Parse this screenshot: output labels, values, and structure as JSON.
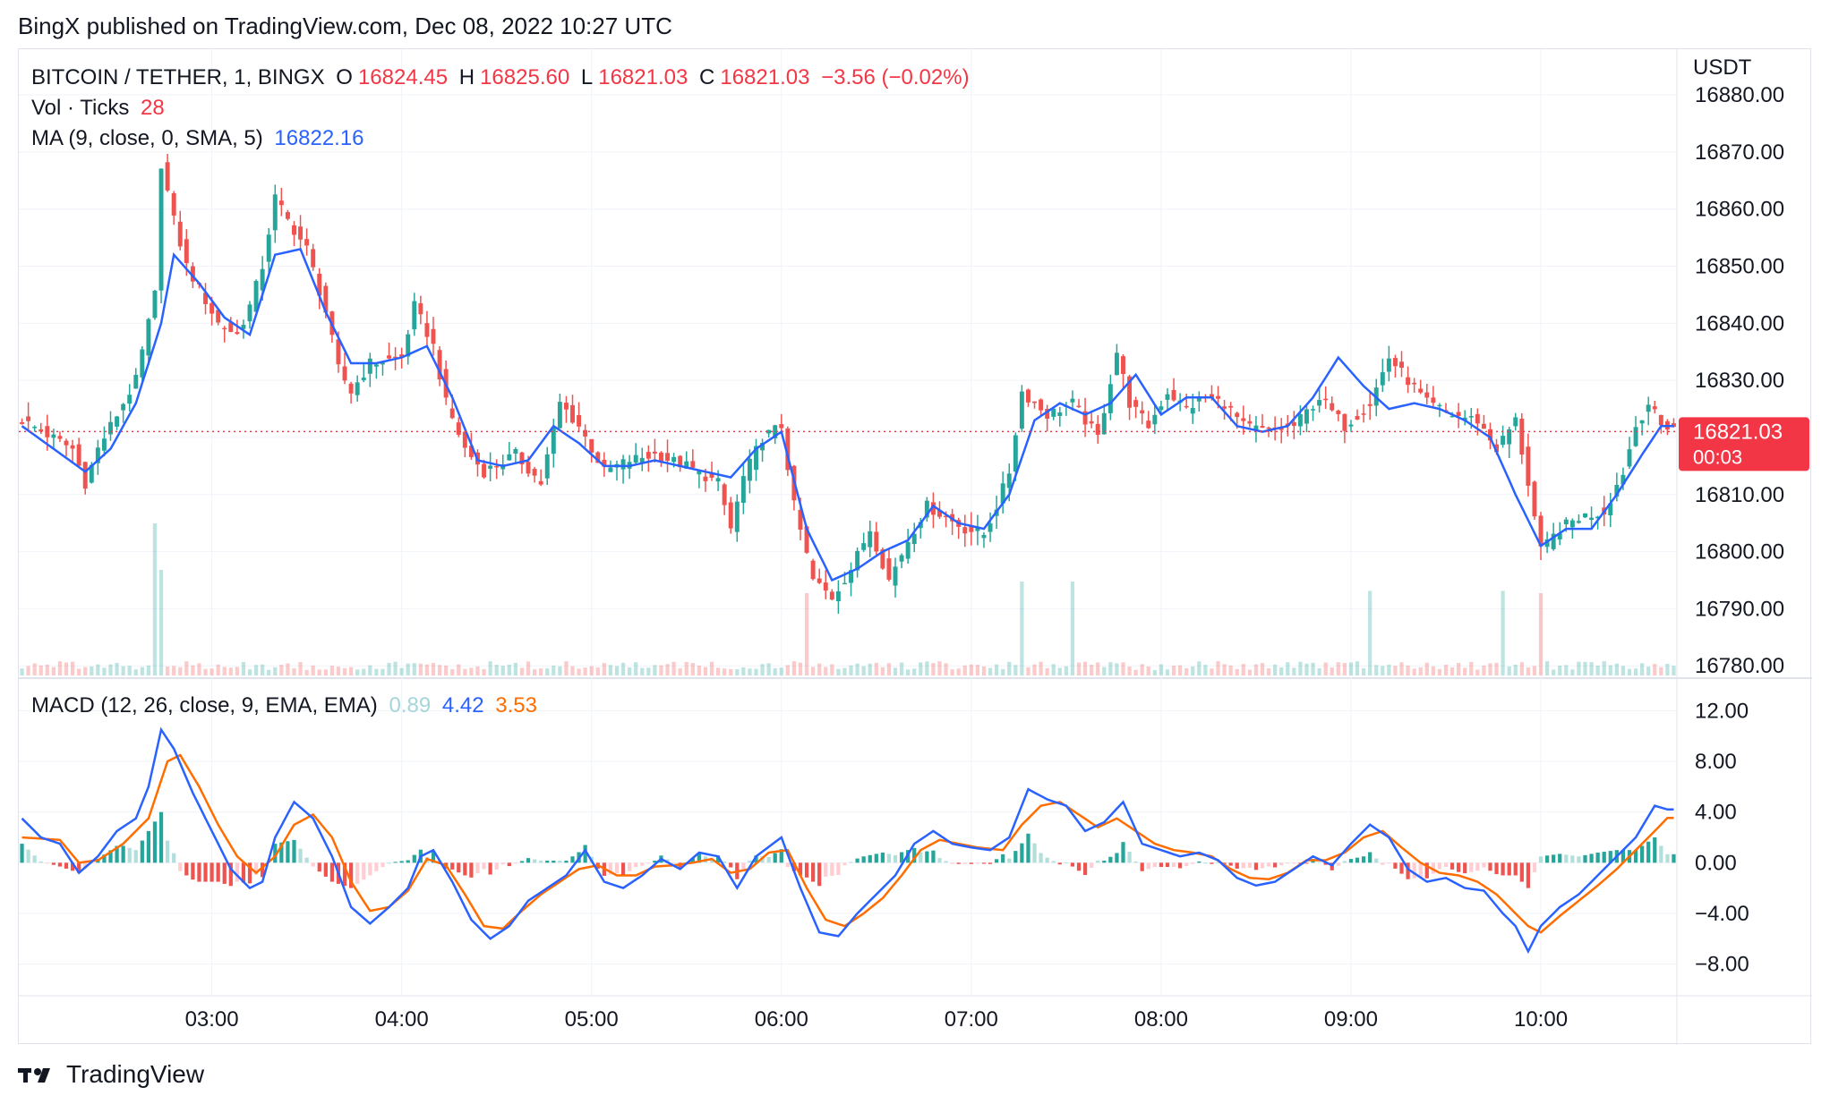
{
  "header": {
    "published": "BingX published on TradingView.com, Dec 08, 2022 10:27 UTC"
  },
  "legend": {
    "symbol": "BITCOIN / TETHER, 1, BINGX",
    "open_label": "O",
    "open": "16824.45",
    "high_label": "H",
    "high": "16825.60",
    "low_label": "L",
    "low": "16821.03",
    "close_label": "C",
    "close": "16821.03",
    "change": "−3.56 (−0.02%)",
    "vol_label": "Vol · Ticks",
    "vol_value": "28",
    "ma_label": "MA (9, close, 0, SMA, 5)",
    "ma_value": "16822.16",
    "macd_label": "MACD (12, 26, close, 9, EMA, EMA)",
    "macd_hist": "0.89",
    "macd_line": "4.42",
    "macd_signal": "3.53"
  },
  "price_axis": {
    "currency": "USDT",
    "last_price": "16821.03",
    "countdown": "00:03"
  },
  "footer": {
    "brand": "TradingView"
  },
  "colors": {
    "up": "#26a69a",
    "down": "#ef5350",
    "ma": "#2962ff",
    "macd": "#2962ff",
    "signal": "#ff6d00",
    "price_tag": "#f23645",
    "grid": "#f0f3fa"
  },
  "chart_data": [
    {
      "type": "candlestick",
      "panel": "price",
      "y_ticks": [
        "16880.00",
        "16870.00",
        "16860.00",
        "16850.00",
        "16840.00",
        "16830.00",
        "16820.00",
        "16810.00",
        "16800.00",
        "16790.00",
        "16780.00"
      ],
      "ylim": [
        16778,
        16888
      ],
      "x_ticks": [
        "03:00",
        "04:00",
        "05:00",
        "06:00",
        "07:00",
        "08:00",
        "09:00",
        "10:00"
      ],
      "close_path": [
        [
          0,
          16823
        ],
        [
          8,
          16818
        ],
        [
          10,
          16812
        ],
        [
          12,
          16818
        ],
        [
          15,
          16824
        ],
        [
          18,
          16830
        ],
        [
          21,
          16845
        ],
        [
          22,
          16868
        ],
        [
          24,
          16858
        ],
        [
          26,
          16850
        ],
        [
          28,
          16846
        ],
        [
          31,
          16840
        ],
        [
          34,
          16838
        ],
        [
          36,
          16843
        ],
        [
          38,
          16850
        ],
        [
          40,
          16862
        ],
        [
          42,
          16858
        ],
        [
          45,
          16853
        ],
        [
          48,
          16842
        ],
        [
          50,
          16832
        ],
        [
          52,
          16828
        ],
        [
          55,
          16833
        ],
        [
          60,
          16834
        ],
        [
          62,
          16843
        ],
        [
          65,
          16836
        ],
        [
          67,
          16826
        ],
        [
          70,
          16818
        ],
        [
          73,
          16814
        ],
        [
          78,
          16817
        ],
        [
          82,
          16812
        ],
        [
          85,
          16826
        ],
        [
          88,
          16822
        ],
        [
          92,
          16814
        ],
        [
          96,
          16816
        ],
        [
          100,
          16817
        ],
        [
          105,
          16815
        ],
        [
          110,
          16812
        ],
        [
          112,
          16804
        ],
        [
          114,
          16813
        ],
        [
          117,
          16820
        ],
        [
          120,
          16822
        ],
        [
          122,
          16808
        ],
        [
          125,
          16795
        ],
        [
          128,
          16792
        ],
        [
          131,
          16797
        ],
        [
          134,
          16804
        ],
        [
          137,
          16795
        ],
        [
          140,
          16802
        ],
        [
          143,
          16808
        ],
        [
          146,
          16806
        ],
        [
          149,
          16804
        ],
        [
          152,
          16803
        ],
        [
          154,
          16808
        ],
        [
          156,
          16814
        ],
        [
          158,
          16828
        ],
        [
          162,
          16824
        ],
        [
          166,
          16826
        ],
        [
          170,
          16820
        ],
        [
          173,
          16835
        ],
        [
          175,
          16826
        ],
        [
          178,
          16822
        ],
        [
          181,
          16828
        ],
        [
          184,
          16825
        ],
        [
          187,
          16827
        ],
        [
          190,
          16826
        ],
        [
          193,
          16822
        ],
        [
          197,
          16821
        ],
        [
          201,
          16822
        ],
        [
          205,
          16827
        ],
        [
          209,
          16822
        ],
        [
          213,
          16826
        ],
        [
          216,
          16834
        ],
        [
          219,
          16830
        ],
        [
          222,
          16826
        ],
        [
          226,
          16824
        ],
        [
          230,
          16823
        ],
        [
          233,
          16818
        ],
        [
          236,
          16823
        ],
        [
          238,
          16812
        ],
        [
          240,
          16800
        ],
        [
          243,
          16804
        ],
        [
          246,
          16806
        ],
        [
          250,
          16807
        ],
        [
          253,
          16814
        ],
        [
          255,
          16822
        ],
        [
          257,
          16826
        ],
        [
          259,
          16822
        ]
      ],
      "ma_path": [
        [
          0,
          16822
        ],
        [
          10,
          16814
        ],
        [
          14,
          16818
        ],
        [
          18,
          16826
        ],
        [
          22,
          16840
        ],
        [
          24,
          16852
        ],
        [
          28,
          16847
        ],
        [
          32,
          16841
        ],
        [
          36,
          16838
        ],
        [
          40,
          16852
        ],
        [
          44,
          16853
        ],
        [
          48,
          16842
        ],
        [
          52,
          16833
        ],
        [
          56,
          16833
        ],
        [
          60,
          16834
        ],
        [
          64,
          16836
        ],
        [
          68,
          16827
        ],
        [
          72,
          16816
        ],
        [
          76,
          16815
        ],
        [
          80,
          16816
        ],
        [
          84,
          16822
        ],
        [
          88,
          16819
        ],
        [
          92,
          16815
        ],
        [
          96,
          16815
        ],
        [
          100,
          16816
        ],
        [
          104,
          16815
        ],
        [
          108,
          16814
        ],
        [
          112,
          16813
        ],
        [
          116,
          16818
        ],
        [
          120,
          16821
        ],
        [
          124,
          16804
        ],
        [
          128,
          16795
        ],
        [
          132,
          16797
        ],
        [
          136,
          16800
        ],
        [
          140,
          16802
        ],
        [
          144,
          16808
        ],
        [
          148,
          16805
        ],
        [
          152,
          16804
        ],
        [
          156,
          16810
        ],
        [
          160,
          16823
        ],
        [
          164,
          16826
        ],
        [
          168,
          16824
        ],
        [
          172,
          16826
        ],
        [
          176,
          16831
        ],
        [
          180,
          16824
        ],
        [
          184,
          16827
        ],
        [
          188,
          16827
        ],
        [
          192,
          16822
        ],
        [
          196,
          16821
        ],
        [
          200,
          16822
        ],
        [
          204,
          16827
        ],
        [
          208,
          16834
        ],
        [
          212,
          16829
        ],
        [
          216,
          16825
        ],
        [
          220,
          16826
        ],
        [
          224,
          16825
        ],
        [
          228,
          16823
        ],
        [
          232,
          16820
        ],
        [
          236,
          16810
        ],
        [
          240,
          16801
        ],
        [
          244,
          16804
        ],
        [
          248,
          16804
        ],
        [
          252,
          16810
        ],
        [
          256,
          16817
        ],
        [
          259,
          16822
        ]
      ]
    },
    {
      "type": "bar",
      "panel": "volume",
      "spikes": [
        [
          21,
          1.0
        ],
        [
          22,
          0.6
        ],
        [
          124,
          0.4
        ],
        [
          158,
          0.5
        ],
        [
          166,
          0.5
        ],
        [
          213,
          0.42
        ],
        [
          234,
          0.42
        ],
        [
          240,
          0.4
        ]
      ]
    },
    {
      "type": "line",
      "panel": "macd",
      "y_ticks": [
        "12.00",
        "8.00",
        "4.00",
        "0.00",
        "−4.00",
        "−8.00"
      ],
      "ylim": [
        -8,
        12
      ],
      "macd_path": [
        [
          0,
          3.5
        ],
        [
          3,
          2.0
        ],
        [
          6,
          1.5
        ],
        [
          9,
          -0.8
        ],
        [
          12,
          0.5
        ],
        [
          15,
          2.5
        ],
        [
          18,
          3.5
        ],
        [
          20,
          6.0
        ],
        [
          22,
          10.5
        ],
        [
          24,
          9.0
        ],
        [
          27,
          5.5
        ],
        [
          30,
          2.5
        ],
        [
          33,
          -0.5
        ],
        [
          36,
          -2.0
        ],
        [
          38,
          -1.5
        ],
        [
          40,
          2.0
        ],
        [
          43,
          4.8
        ],
        [
          46,
          3.5
        ],
        [
          49,
          0.5
        ],
        [
          52,
          -3.5
        ],
        [
          55,
          -4.8
        ],
        [
          58,
          -3.5
        ],
        [
          61,
          -2.0
        ],
        [
          63,
          0.5
        ],
        [
          65,
          1.0
        ],
        [
          68,
          -1.5
        ],
        [
          71,
          -4.5
        ],
        [
          74,
          -6.0
        ],
        [
          77,
          -5.0
        ],
        [
          80,
          -3.0
        ],
        [
          83,
          -2.0
        ],
        [
          86,
          -1.0
        ],
        [
          89,
          1.0
        ],
        [
          92,
          -1.5
        ],
        [
          95,
          -2.0
        ],
        [
          98,
          -1.0
        ],
        [
          101,
          0.3
        ],
        [
          104,
          -0.5
        ],
        [
          107,
          0.8
        ],
        [
          110,
          0.5
        ],
        [
          113,
          -2.0
        ],
        [
          116,
          0.5
        ],
        [
          120,
          2.0
        ],
        [
          123,
          -2.0
        ],
        [
          126,
          -5.5
        ],
        [
          129,
          -5.8
        ],
        [
          132,
          -4.0
        ],
        [
          135,
          -2.5
        ],
        [
          138,
          -1.0
        ],
        [
          141,
          1.5
        ],
        [
          144,
          2.5
        ],
        [
          147,
          1.5
        ],
        [
          150,
          1.2
        ],
        [
          153,
          1.0
        ],
        [
          156,
          2.0
        ],
        [
          159,
          5.8
        ],
        [
          162,
          5.0
        ],
        [
          165,
          4.5
        ],
        [
          168,
          2.5
        ],
        [
          171,
          3.2
        ],
        [
          174,
          4.8
        ],
        [
          177,
          1.5
        ],
        [
          180,
          1.0
        ],
        [
          183,
          0.5
        ],
        [
          186,
          0.8
        ],
        [
          189,
          0.2
        ],
        [
          192,
          -1.2
        ],
        [
          195,
          -1.8
        ],
        [
          198,
          -1.5
        ],
        [
          201,
          -0.5
        ],
        [
          204,
          0.5
        ],
        [
          207,
          -0.2
        ],
        [
          210,
          1.5
        ],
        [
          213,
          3.0
        ],
        [
          216,
          2.0
        ],
        [
          219,
          -0.5
        ],
        [
          222,
          -1.5
        ],
        [
          225,
          -1.2
        ],
        [
          228,
          -2.0
        ],
        [
          231,
          -2.2
        ],
        [
          234,
          -4.0
        ],
        [
          236,
          -5.0
        ],
        [
          238,
          -7.0
        ],
        [
          240,
          -5.0
        ],
        [
          243,
          -3.5
        ],
        [
          246,
          -2.5
        ],
        [
          249,
          -1.0
        ],
        [
          252,
          0.5
        ],
        [
          255,
          2.0
        ],
        [
          258,
          4.5
        ],
        [
          260,
          4.2
        ]
      ],
      "signal_path": [
        [
          0,
          2.0
        ],
        [
          6,
          1.8
        ],
        [
          9,
          0.0
        ],
        [
          12,
          0.2
        ],
        [
          16,
          1.5
        ],
        [
          20,
          3.5
        ],
        [
          23,
          8.0
        ],
        [
          25,
          8.5
        ],
        [
          28,
          6.0
        ],
        [
          31,
          3.0
        ],
        [
          34,
          0.5
        ],
        [
          37,
          -0.8
        ],
        [
          40,
          0.5
        ],
        [
          43,
          3.0
        ],
        [
          46,
          3.8
        ],
        [
          49,
          2.0
        ],
        [
          52,
          -1.5
        ],
        [
          55,
          -3.8
        ],
        [
          58,
          -3.5
        ],
        [
          61,
          -2.2
        ],
        [
          64,
          0.3
        ],
        [
          67,
          -0.2
        ],
        [
          70,
          -2.5
        ],
        [
          73,
          -5.0
        ],
        [
          76,
          -5.2
        ],
        [
          79,
          -3.8
        ],
        [
          82,
          -2.5
        ],
        [
          85,
          -1.5
        ],
        [
          88,
          -0.5
        ],
        [
          91,
          -0.2
        ],
        [
          94,
          -1.0
        ],
        [
          97,
          -1.0
        ],
        [
          100,
          -0.3
        ],
        [
          103,
          -0.2
        ],
        [
          106,
          0.0
        ],
        [
          109,
          0.3
        ],
        [
          112,
          -0.8
        ],
        [
          115,
          -0.5
        ],
        [
          118,
          0.8
        ],
        [
          121,
          1.0
        ],
        [
          124,
          -2.0
        ],
        [
          127,
          -4.5
        ],
        [
          130,
          -5.0
        ],
        [
          133,
          -4.0
        ],
        [
          136,
          -2.8
        ],
        [
          139,
          -1.0
        ],
        [
          142,
          1.0
        ],
        [
          145,
          1.8
        ],
        [
          148,
          1.5
        ],
        [
          151,
          1.2
        ],
        [
          155,
          1.0
        ],
        [
          158,
          3.0
        ],
        [
          161,
          4.5
        ],
        [
          164,
          4.8
        ],
        [
          167,
          3.8
        ],
        [
          170,
          2.8
        ],
        [
          173,
          3.5
        ],
        [
          176,
          2.5
        ],
        [
          179,
          1.5
        ],
        [
          182,
          1.0
        ],
        [
          185,
          0.8
        ],
        [
          188,
          0.5
        ],
        [
          191,
          -0.5
        ],
        [
          194,
          -1.2
        ],
        [
          197,
          -1.3
        ],
        [
          200,
          -0.8
        ],
        [
          203,
          0.2
        ],
        [
          206,
          0.2
        ],
        [
          209,
          0.8
        ],
        [
          212,
          2.0
        ],
        [
          215,
          2.5
        ],
        [
          218,
          1.2
        ],
        [
          221,
          0.0
        ],
        [
          224,
          -0.8
        ],
        [
          227,
          -1.0
        ],
        [
          230,
          -1.5
        ],
        [
          233,
          -2.5
        ],
        [
          236,
          -4.0
        ],
        [
          238,
          -5.0
        ],
        [
          240,
          -5.5
        ],
        [
          243,
          -4.2
        ],
        [
          246,
          -3.0
        ],
        [
          249,
          -1.8
        ],
        [
          252,
          -0.5
        ],
        [
          255,
          1.0
        ],
        [
          258,
          2.5
        ],
        [
          260,
          3.53
        ]
      ]
    }
  ]
}
